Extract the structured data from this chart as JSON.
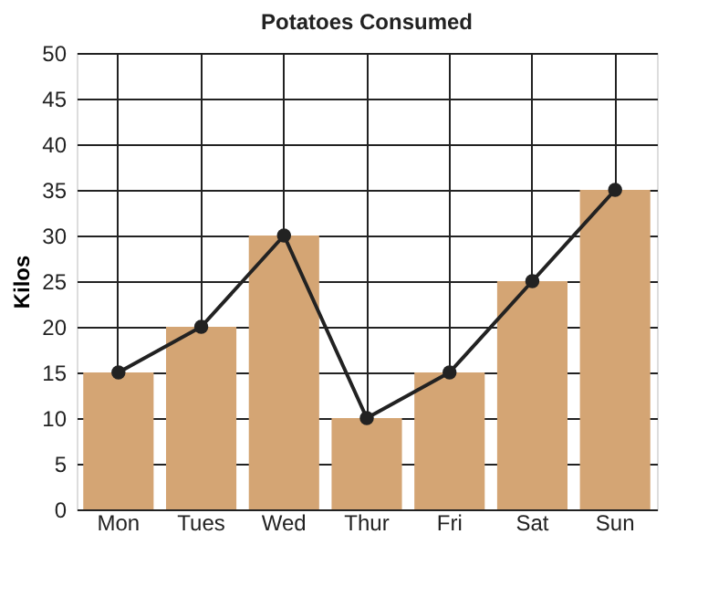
{
  "chart_data": {
    "type": "bar",
    "title": "Potatoes Consumed",
    "ylabel": "Kilos",
    "categories": [
      "Mon",
      "Tues",
      "Wed",
      "Thur",
      "Fri",
      "Sat",
      "Sun"
    ],
    "series": [
      {
        "color": "#d4a574",
        "values": [
          15,
          20,
          30,
          10,
          15,
          25,
          35
        ]
      },
      {
        "type": "line",
        "color": "#222222",
        "values": [
          15,
          20,
          30,
          10,
          15,
          25,
          35
        ],
        "marker": "circle",
        "line_style": "solid"
      }
    ],
    "ylim": [
      0,
      50
    ],
    "yticks": [
      0,
      5,
      10,
      15,
      20,
      25,
      30,
      35,
      40,
      45,
      50
    ],
    "grid": true
  }
}
